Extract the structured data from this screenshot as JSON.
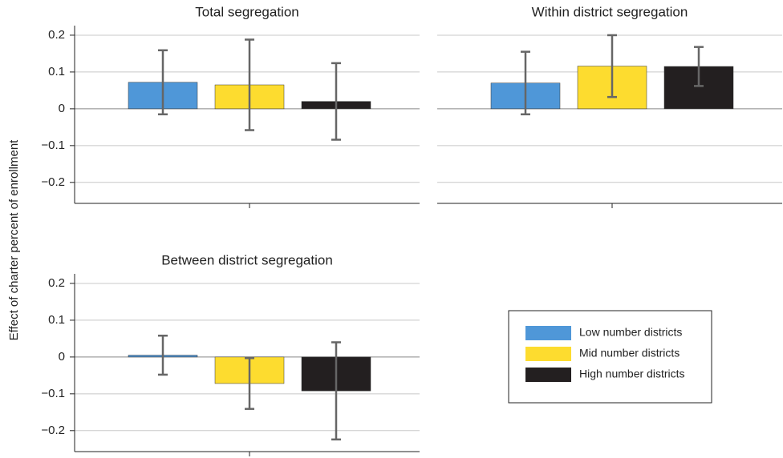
{
  "y_label": "Effect of charter percent of enrollment",
  "chart_data": [
    {
      "type": "bar",
      "title": "Total segregation",
      "series": [
        {
          "name": "Low number districts",
          "color": "#4f97d8",
          "values": [
            0.072
          ],
          "errors": [
            0.087
          ]
        },
        {
          "name": "Mid number districts",
          "color": "#fddc2f",
          "values": [
            0.065
          ],
          "errors": [
            0.123
          ]
        },
        {
          "name": "High number districts",
          "color": "#231f20",
          "values": [
            0.02
          ],
          "errors": [
            0.104
          ]
        }
      ],
      "ylim": [
        -0.257,
        0.226
      ],
      "yticks": [
        {
          "value": -0.2,
          "label": "−0.2"
        },
        {
          "value": -0.1,
          "label": "−0.1"
        },
        0,
        0.1,
        0.2
      ],
      "grid": true,
      "show_ytick_labels": true
    },
    {
      "type": "bar",
      "title": "Within district segregation",
      "series": [
        {
          "name": "Low number districts",
          "color": "#4f97d8",
          "values": [
            0.07
          ],
          "errors": [
            0.085
          ]
        },
        {
          "name": "Mid number districts",
          "color": "#fddc2f",
          "values": [
            0.116
          ],
          "errors": [
            0.084
          ]
        },
        {
          "name": "High number districts",
          "color": "#231f20",
          "values": [
            0.115
          ],
          "errors": [
            0.053
          ]
        }
      ],
      "ylim": [
        -0.257,
        0.226
      ],
      "yticks": [
        {
          "value": -0.2,
          "label": "−0.2"
        },
        {
          "value": -0.1,
          "label": "−0.1"
        },
        0,
        0.1,
        0.2
      ],
      "grid": true,
      "show_ytick_labels": false
    },
    {
      "type": "bar",
      "title": "Between district segregation",
      "series": [
        {
          "name": "Low number districts",
          "color": "#4f97d8",
          "values": [
            0.005
          ],
          "errors": [
            0.053
          ]
        },
        {
          "name": "Mid number districts",
          "color": "#fddc2f",
          "values": [
            -0.072
          ],
          "errors": [
            0.069
          ]
        },
        {
          "name": "High number districts",
          "color": "#231f20",
          "values": [
            -0.092
          ],
          "errors": [
            0.132
          ]
        }
      ],
      "ylim": [
        -0.257,
        0.226
      ],
      "yticks": [
        {
          "value": -0.2,
          "label": "−0.2"
        },
        {
          "value": -0.1,
          "label": "−0.1"
        },
        0,
        0.1,
        0.2
      ],
      "grid": true,
      "show_ytick_labels": true
    }
  ]
}
